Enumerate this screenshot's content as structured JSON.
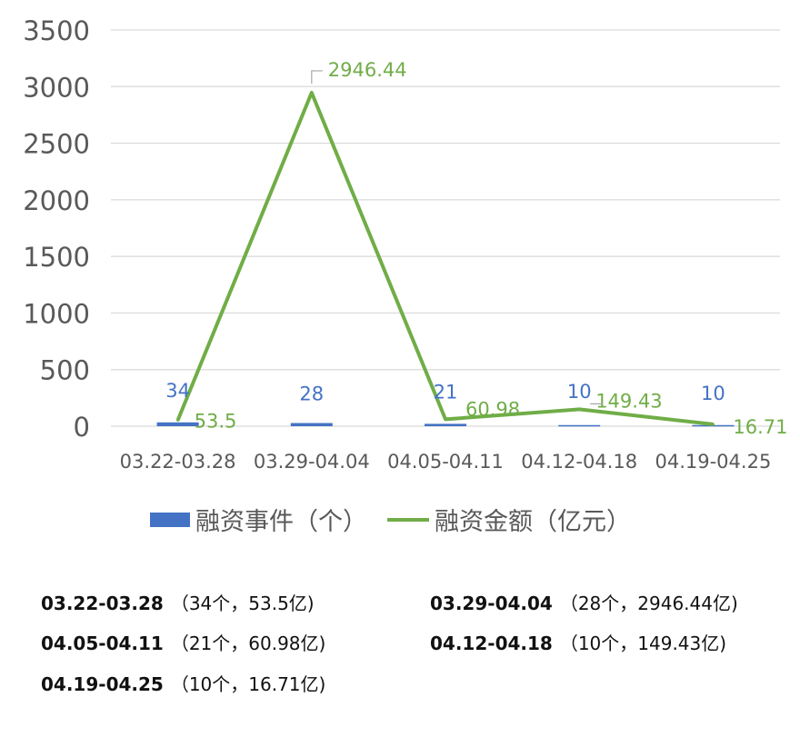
{
  "chart_data": {
    "type": "bar+line",
    "categories": [
      "03.22-03.28",
      "03.29-04.04",
      "04.05-04.11",
      "04.12-04.18",
      "04.19-04.25"
    ],
    "series": [
      {
        "name": "融资事件（个）",
        "kind": "bar",
        "color": "#4472C4",
        "values": [
          34,
          28,
          21,
          10,
          10
        ],
        "labels": [
          "34",
          "28",
          "21",
          "10",
          "10"
        ]
      },
      {
        "name": "融资金额（亿元）",
        "kind": "line",
        "color": "#70AD47",
        "values": [
          53.5,
          2946.44,
          60.98,
          149.43,
          16.71
        ],
        "labels": [
          "53.5",
          "2946.44",
          "60.98",
          "149.43",
          "16.71"
        ]
      }
    ],
    "ylim": [
      0,
      3500
    ],
    "yticks": [
      "0",
      "500",
      "1000",
      "1500",
      "2000",
      "2500",
      "3000",
      "3500"
    ],
    "ytick_values": [
      0,
      500,
      1000,
      1500,
      2000,
      2500,
      3000,
      3500
    ],
    "grid": true,
    "legend_position": "bottom"
  },
  "summary": [
    {
      "range": "03.22-03.28",
      "detail": "（34个，53.5亿)"
    },
    {
      "range": "03.29-04.04",
      "detail": "（28个，2946.44亿)"
    },
    {
      "range": "04.05-04.11",
      "detail": "（21个，60.98亿)"
    },
    {
      "range": "04.12-04.18",
      "detail": "（10个，149.43亿)"
    },
    {
      "range": "04.19-04.25",
      "detail": "（10个，16.71亿)"
    }
  ]
}
